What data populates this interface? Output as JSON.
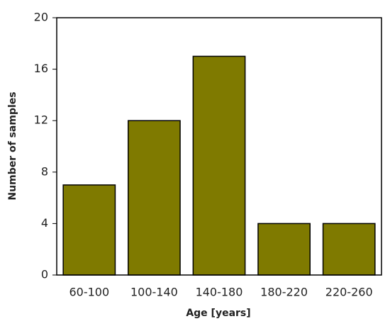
{
  "chart_data": {
    "type": "bar",
    "x_label": "Age [years]",
    "y_label": "Number of samples",
    "categories": [
      "60-100",
      "100-140",
      "140-180",
      "180-220",
      "220-260"
    ],
    "values": [
      7,
      12,
      17,
      4,
      4
    ],
    "color": "#7f7a00",
    "ylim": [
      0,
      20
    ],
    "yticks": [
      0,
      4,
      8,
      12,
      16,
      20
    ]
  }
}
